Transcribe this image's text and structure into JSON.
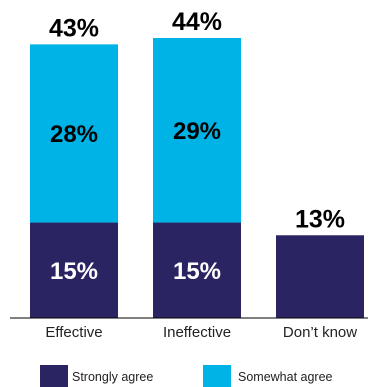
{
  "chart_data": {
    "type": "bar",
    "stacked": true,
    "categories": [
      "Effective",
      "Ineffective",
      "Don’t know"
    ],
    "series": [
      {
        "name": "Strongly agree",
        "color": "#2b2462",
        "values": [
          15,
          15,
          13
        ]
      },
      {
        "name": "Somewhat agree",
        "color": "#00b3e6",
        "values": [
          28,
          29,
          0
        ]
      }
    ],
    "value_labels": {
      "segments": [
        [
          "15%",
          "28%"
        ],
        [
          "15%",
          "29%"
        ],
        [
          "",
          ""
        ]
      ],
      "totals": [
        "43%",
        "44%",
        "13%"
      ]
    },
    "ylim": [
      0,
      44
    ],
    "grid": false,
    "legend_placement": "bottom"
  }
}
